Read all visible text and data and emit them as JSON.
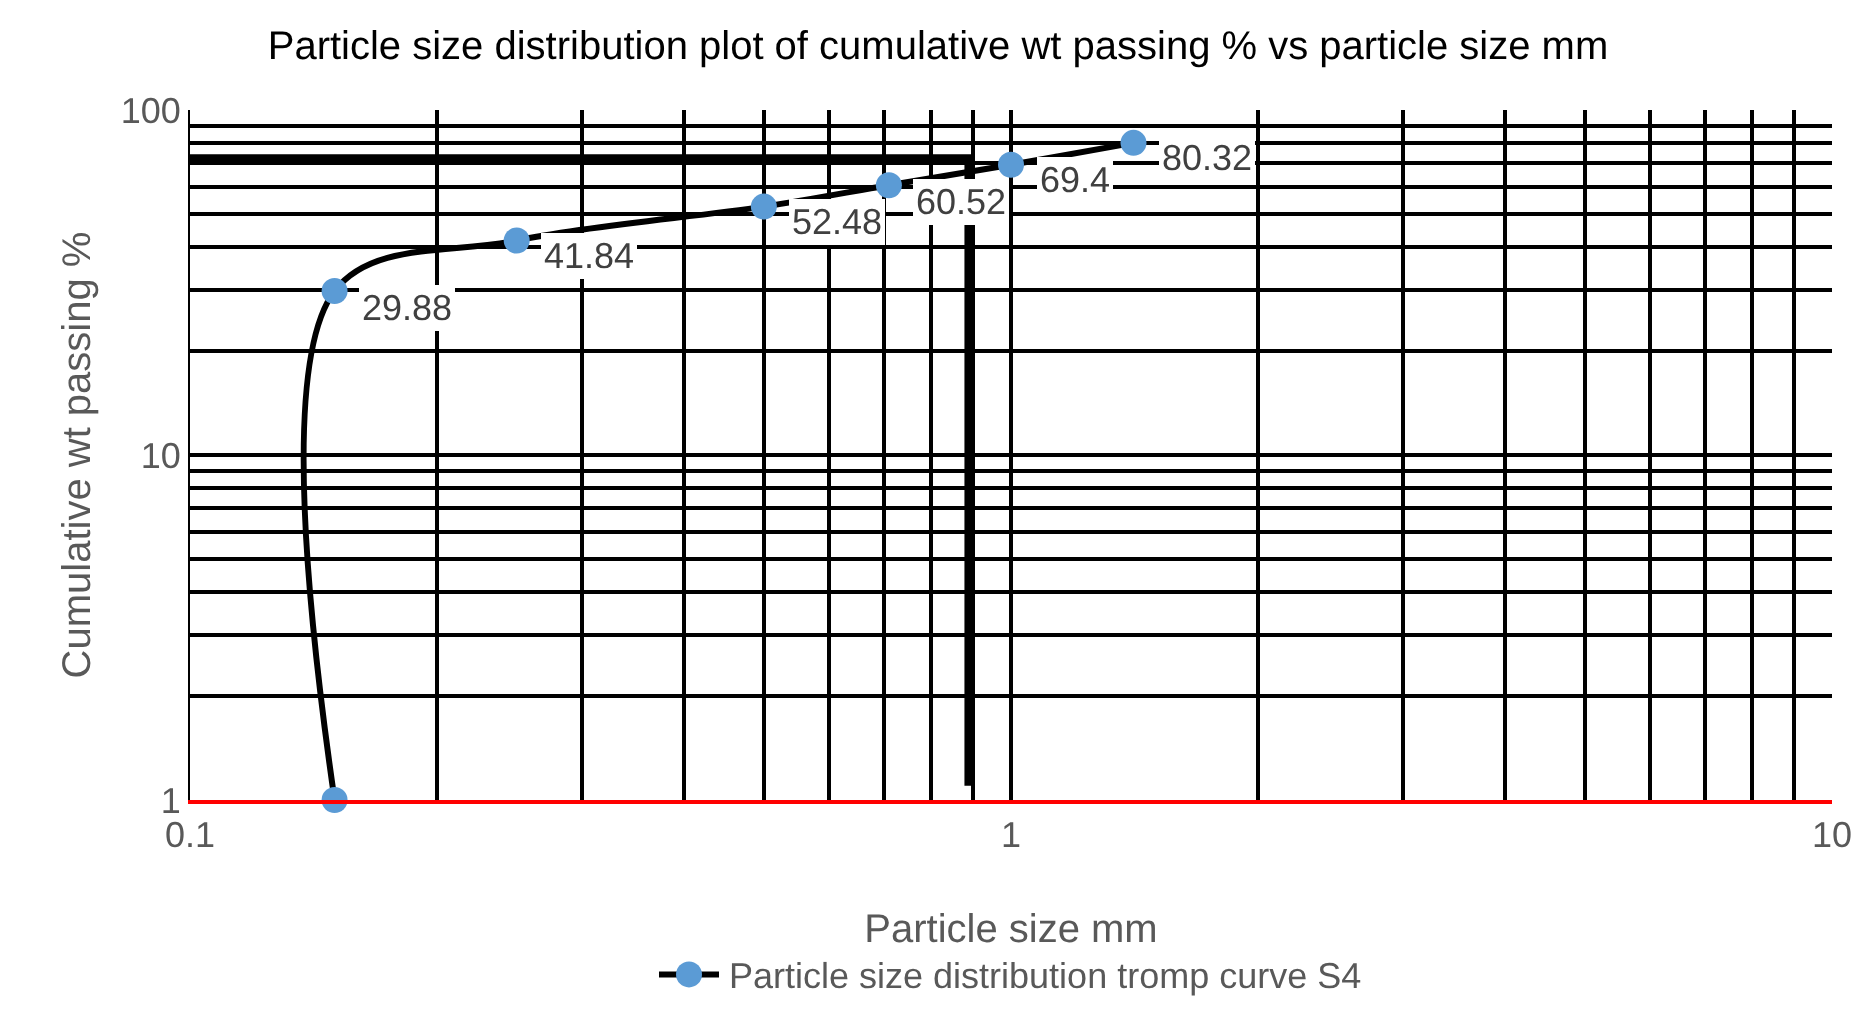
{
  "chart_data": {
    "type": "line",
    "title": "Particle size distribution plot of cumulative wt passing % vs particle size mm",
    "xlabel": "Particle size mm",
    "ylabel": "Cumulative wt passing %",
    "log": "xy",
    "xlim": [
      0.1,
      10
    ],
    "ylim": [
      1,
      100
    ],
    "xticks": [
      0.1,
      {
        "value": 0.2,
        "label": null
      },
      {
        "value": 0.3,
        "label": null
      },
      {
        "value": 0.4,
        "label": null
      },
      {
        "value": 0.5,
        "label": null
      },
      {
        "value": 0.6,
        "label": null
      },
      {
        "value": 0.7,
        "label": null
      },
      {
        "value": 0.8,
        "label": null
      },
      {
        "value": 0.9,
        "label": null
      },
      1,
      {
        "value": 2,
        "label": null
      },
      {
        "value": 3,
        "label": null
      },
      {
        "value": 4,
        "label": null
      },
      {
        "value": 5,
        "label": null
      },
      {
        "value": 6,
        "label": null
      },
      {
        "value": 7,
        "label": null
      },
      {
        "value": 8,
        "label": null
      },
      {
        "value": 9,
        "label": null
      },
      10
    ],
    "yticks": [
      1,
      {
        "value": 2,
        "label": null
      },
      {
        "value": 3,
        "label": null
      },
      {
        "value": 4,
        "label": null
      },
      {
        "value": 5,
        "label": null
      },
      {
        "value": 6,
        "label": null
      },
      {
        "value": 7,
        "label": null
      },
      {
        "value": 8,
        "label": null
      },
      {
        "value": 9,
        "label": null
      },
      10,
      {
        "value": 20,
        "label": null
      },
      {
        "value": 30,
        "label": null
      },
      {
        "value": 40,
        "label": null
      },
      {
        "value": 50,
        "label": null
      },
      {
        "value": 60,
        "label": null
      },
      {
        "value": 70,
        "label": null
      },
      {
        "value": 80,
        "label": null
      },
      {
        "value": 90,
        "label": null
      },
      100
    ],
    "grid": true,
    "legend": "bottom",
    "marker": "circle",
    "line_style": "solid",
    "series": [
      {
        "name": "Particle size distribution tromp curve S4",
        "color": "#000000",
        "colors": [
          "#5b9bd5",
          "#5b9bd5",
          "#5b9bd5",
          "#5b9bd5",
          "#5b9bd5",
          "#5b9bd5",
          "#5b9bd5"
        ],
        "x": [
          0.15,
          0.15,
          0.25,
          0.5,
          0.71,
          1.0,
          1.41
        ],
        "values": [
          1,
          29.88,
          41.84,
          52.48,
          60.52,
          69.4,
          80.32
        ],
        "value_labels": [
          null,
          "29.88",
          "41.84",
          "52.48",
          "60.52",
          "69.4",
          "80.32"
        ]
      },
      {
        "type": "line",
        "color": "#000000",
        "marker": "none",
        "x": [
          0.1,
          0.89,
          0.89
        ],
        "values": [
          72,
          72,
          1.1
        ]
      }
    ]
  }
}
